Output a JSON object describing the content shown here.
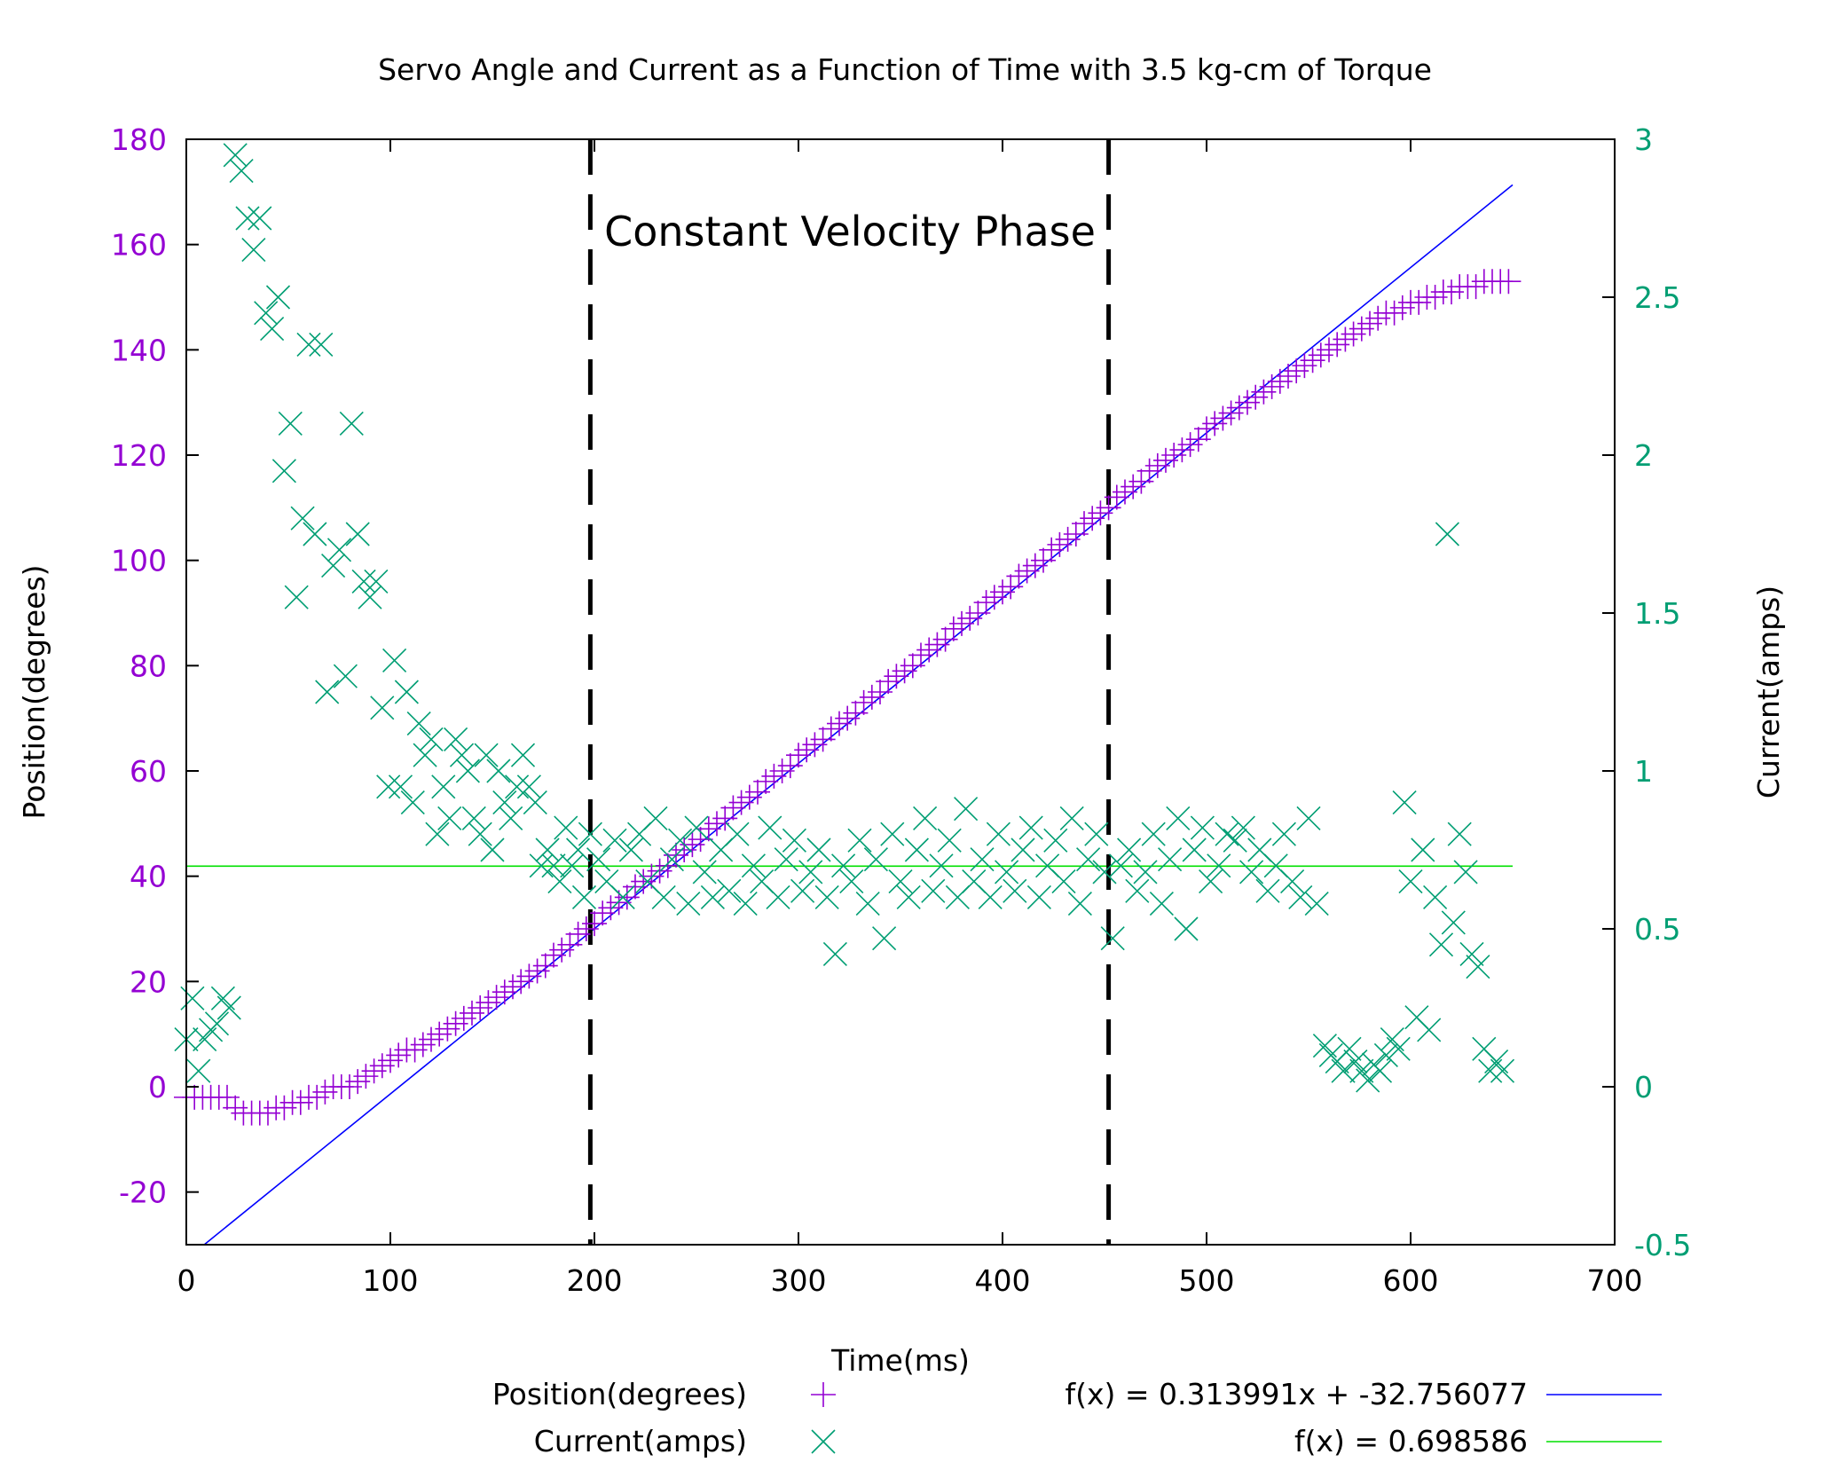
{
  "chart_data": {
    "type": "scatter",
    "title": "Servo Angle and Current as a Function of Time with 3.5 kg-cm of Torque",
    "xlabel": "Time(ms)",
    "ylabel": "Position(degrees)",
    "y2label": "Current(amps)",
    "xlim": [
      0,
      700
    ],
    "ylim": [
      -30,
      180
    ],
    "y2lim": [
      -0.5,
      3
    ],
    "xticks": [
      0,
      100,
      200,
      300,
      400,
      500,
      600,
      700
    ],
    "yticks": [
      -20,
      0,
      20,
      40,
      60,
      80,
      100,
      120,
      140,
      160,
      180
    ],
    "y2ticks": [
      -0.5,
      0,
      0.5,
      1,
      1.5,
      2,
      2.5,
      3
    ],
    "grid": false,
    "legend_position": "bottom",
    "colors": {
      "position": "#9400d3",
      "current": "#009e73",
      "fit_position": "#0000ff",
      "fit_current": "#00e000",
      "phase_lines": "#000000"
    },
    "annotation": "Constant Velocity Phase",
    "phase_boundaries": [
      198,
      452
    ],
    "fits": [
      {
        "label": "f(x) = 0.313991x + -32.756077",
        "slope": 0.313991,
        "intercept": -32.756077,
        "axis": "y",
        "x_range": [
          0,
          650
        ]
      },
      {
        "label": "f(x) = 0.698586",
        "slope": 0,
        "intercept": 0.698586,
        "axis": "y2",
        "x_range": [
          0,
          650
        ]
      }
    ],
    "series": [
      {
        "name": "Position(degrees)",
        "axis": "y",
        "marker": "plus",
        "x": [
          0,
          4,
          8,
          12,
          16,
          20,
          24,
          28,
          32,
          36,
          40,
          44,
          48,
          52,
          56,
          60,
          64,
          68,
          72,
          76,
          80,
          84,
          88,
          92,
          96,
          100,
          104,
          108,
          112,
          116,
          120,
          124,
          128,
          132,
          136,
          140,
          144,
          148,
          152,
          156,
          160,
          164,
          168,
          172,
          176,
          180,
          184,
          188,
          192,
          196,
          200,
          204,
          208,
          212,
          216,
          220,
          224,
          228,
          232,
          236,
          240,
          244,
          248,
          252,
          256,
          260,
          264,
          268,
          272,
          276,
          280,
          284,
          288,
          292,
          296,
          300,
          304,
          308,
          312,
          316,
          320,
          324,
          328,
          332,
          336,
          340,
          344,
          348,
          352,
          356,
          360,
          364,
          368,
          372,
          376,
          380,
          384,
          388,
          392,
          396,
          400,
          404,
          408,
          412,
          416,
          420,
          424,
          428,
          432,
          436,
          440,
          444,
          448,
          452,
          456,
          460,
          464,
          468,
          472,
          476,
          480,
          484,
          488,
          492,
          496,
          500,
          504,
          508,
          512,
          516,
          520,
          524,
          528,
          532,
          536,
          540,
          544,
          548,
          552,
          556,
          560,
          564,
          568,
          572,
          576,
          580,
          584,
          588,
          592,
          596,
          600,
          604,
          608,
          612,
          616,
          620,
          624,
          628,
          632,
          636,
          640,
          644,
          648
        ],
        "y": [
          -2,
          -2,
          -2,
          -2,
          -2,
          -2,
          -4,
          -5,
          -5,
          -5,
          -5,
          -4,
          -4,
          -3,
          -3,
          -2,
          -2,
          -1,
          0,
          0,
          0,
          1,
          2,
          3,
          4,
          5,
          6,
          7,
          7,
          8,
          9,
          10,
          11,
          12,
          13,
          14,
          15,
          16,
          17,
          18,
          19,
          20,
          21,
          22,
          23,
          25,
          26,
          27,
          29,
          30,
          31,
          33,
          34,
          35,
          36,
          38,
          39,
          40,
          41,
          42,
          44,
          45,
          46,
          47,
          49,
          50,
          51,
          53,
          54,
          55,
          56,
          58,
          59,
          60,
          61,
          63,
          64,
          65,
          66,
          68,
          69,
          70,
          71,
          73,
          74,
          75,
          77,
          78,
          79,
          80,
          82,
          83,
          84,
          85,
          87,
          88,
          89,
          90,
          92,
          93,
          94,
          95,
          97,
          98,
          99,
          100,
          102,
          103,
          104,
          105,
          107,
          108,
          109,
          110,
          112,
          113,
          114,
          115,
          117,
          118,
          119,
          120,
          121,
          122,
          123,
          125,
          126,
          127,
          128,
          129,
          130,
          131,
          132,
          133,
          134,
          135,
          136,
          137,
          138,
          139,
          140,
          141,
          142,
          143,
          144,
          145,
          146,
          147,
          147,
          148,
          149,
          149,
          150,
          150,
          151,
          151,
          152,
          152,
          152,
          153,
          153,
          153,
          153
        ]
      },
      {
        "name": "Current(amps)",
        "axis": "y2",
        "marker": "cross",
        "x": [
          0,
          3,
          6,
          9,
          12,
          15,
          18,
          21,
          24,
          27,
          30,
          33,
          36,
          39,
          42,
          45,
          48,
          51,
          54,
          57,
          60,
          63,
          66,
          69,
          72,
          75,
          78,
          81,
          84,
          87,
          90,
          93,
          96,
          99,
          102,
          105,
          108,
          111,
          114,
          117,
          120,
          123,
          126,
          129,
          132,
          135,
          138,
          141,
          144,
          147,
          150,
          153,
          156,
          159,
          162,
          165,
          168,
          171,
          174,
          177,
          180,
          183,
          186,
          189,
          192,
          195,
          198,
          202,
          206,
          210,
          214,
          218,
          222,
          226,
          230,
          234,
          238,
          242,
          246,
          250,
          254,
          258,
          262,
          266,
          270,
          274,
          278,
          282,
          286,
          290,
          294,
          298,
          302,
          306,
          310,
          314,
          318,
          322,
          326,
          330,
          334,
          338,
          342,
          346,
          350,
          354,
          358,
          362,
          366,
          370,
          374,
          378,
          382,
          386,
          390,
          394,
          398,
          402,
          406,
          410,
          414,
          418,
          422,
          426,
          430,
          434,
          438,
          442,
          446,
          450,
          454,
          458,
          462,
          466,
          470,
          474,
          478,
          482,
          486,
          490,
          494,
          498,
          502,
          506,
          510,
          514,
          518,
          522,
          526,
          530,
          534,
          538,
          542,
          546,
          550,
          554,
          558,
          561,
          564,
          567,
          570,
          573,
          576,
          579,
          582,
          585,
          588,
          591,
          594,
          597,
          600,
          603,
          606,
          609,
          612,
          615,
          618,
          621,
          624,
          627,
          630,
          633,
          636,
          639,
          642,
          645
        ],
        "y": [
          0.15,
          0.28,
          0.05,
          0.15,
          0.18,
          0.2,
          0.28,
          0.25,
          2.95,
          2.9,
          2.75,
          2.65,
          2.75,
          2.45,
          2.4,
          2.5,
          1.95,
          2.1,
          1.55,
          1.8,
          2.35,
          1.75,
          2.35,
          1.25,
          1.65,
          1.7,
          1.3,
          2.1,
          1.75,
          1.6,
          1.55,
          1.6,
          1.2,
          0.95,
          1.35,
          0.95,
          1.25,
          0.9,
          1.15,
          1.05,
          1.1,
          0.8,
          0.95,
          0.85,
          1.1,
          1.05,
          1.0,
          0.85,
          0.8,
          1.05,
          0.75,
          1.0,
          0.9,
          0.85,
          0.95,
          1.05,
          0.95,
          0.9,
          0.7,
          0.75,
          0.7,
          0.65,
          0.82,
          0.7,
          0.75,
          0.6,
          0.8,
          0.72,
          0.65,
          0.78,
          0.6,
          0.75,
          0.8,
          0.65,
          0.85,
          0.6,
          0.72,
          0.78,
          0.58,
          0.82,
          0.68,
          0.6,
          0.75,
          0.62,
          0.8,
          0.58,
          0.7,
          0.65,
          0.82,
          0.6,
          0.72,
          0.78,
          0.62,
          0.68,
          0.75,
          0.6,
          0.42,
          0.7,
          0.65,
          0.78,
          0.58,
          0.72,
          0.47,
          0.8,
          0.65,
          0.6,
          0.75,
          0.85,
          0.62,
          0.7,
          0.78,
          0.6,
          0.88,
          0.65,
          0.72,
          0.6,
          0.8,
          0.68,
          0.62,
          0.75,
          0.82,
          0.6,
          0.7,
          0.78,
          0.65,
          0.85,
          0.58,
          0.72,
          0.8,
          0.68,
          0.47,
          0.7,
          0.75,
          0.62,
          0.68,
          0.8,
          0.58,
          0.72,
          0.85,
          0.5,
          0.75,
          0.82,
          0.65,
          0.7,
          0.8,
          0.78,
          0.82,
          0.68,
          0.75,
          0.62,
          0.7,
          0.8,
          0.65,
          0.6,
          0.85,
          0.58,
          0.13,
          0.1,
          0.08,
          0.05,
          0.12,
          0.08,
          0.05,
          0.02,
          0.07,
          0.05,
          0.1,
          0.15,
          0.12,
          0.9,
          0.65,
          0.22,
          0.75,
          0.18,
          0.6,
          0.45,
          1.75,
          0.52,
          0.8,
          0.68,
          0.42,
          0.38,
          0.12,
          0.05,
          0.08,
          0.05
        ]
      }
    ]
  }
}
